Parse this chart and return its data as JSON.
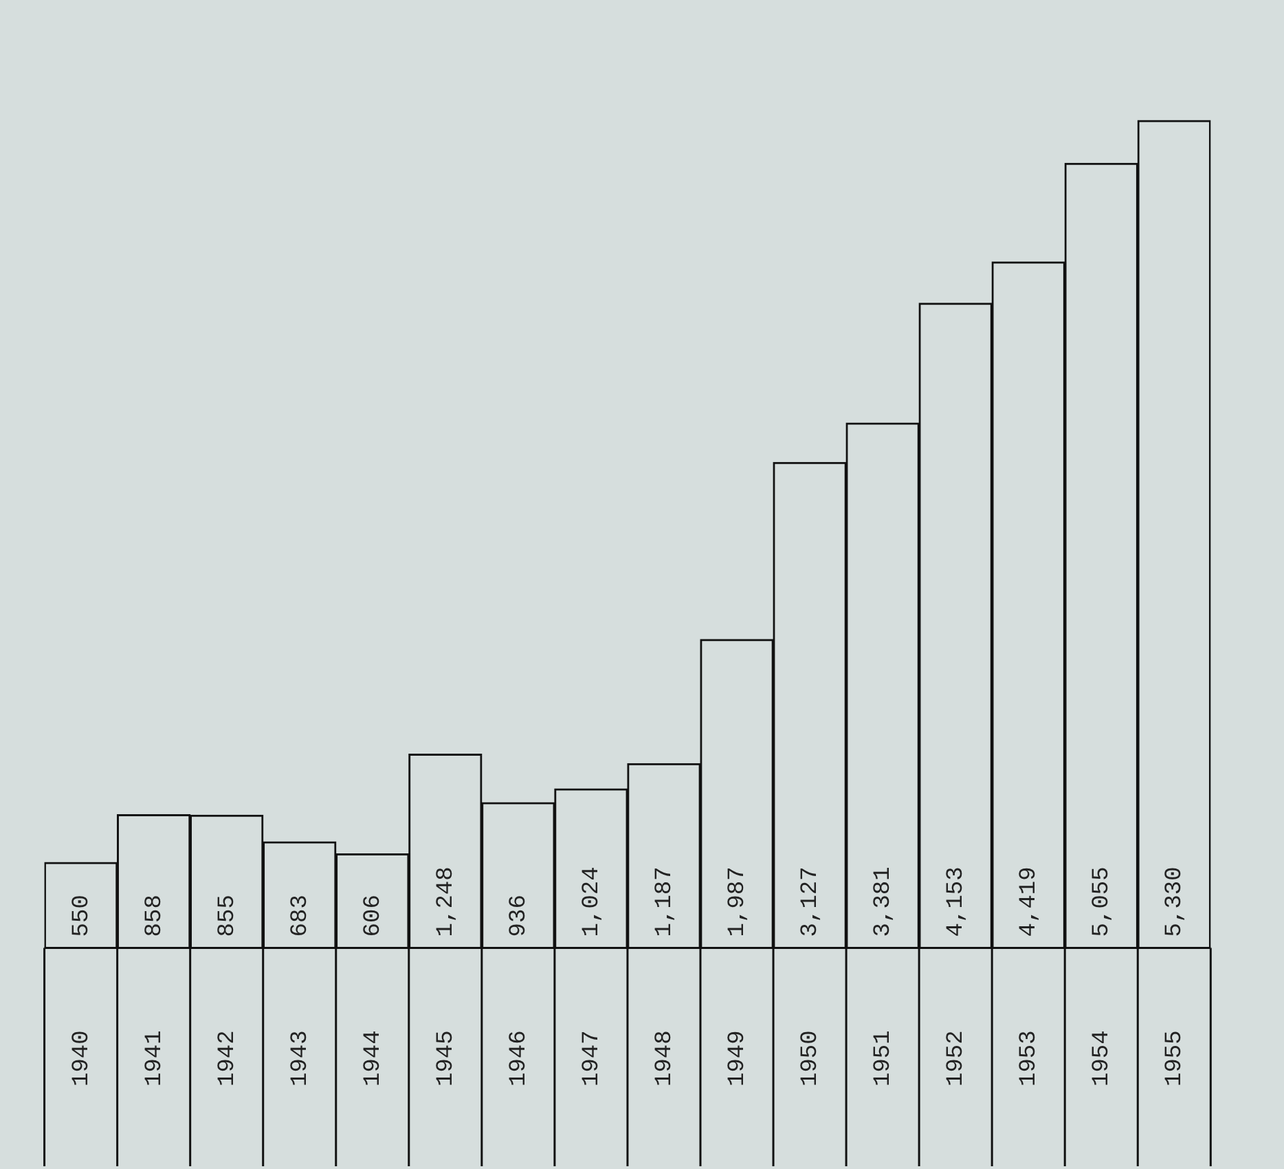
{
  "chart_data": {
    "type": "bar",
    "categories": [
      "1940",
      "1941",
      "1942",
      "1943",
      "1944",
      "1945",
      "1946",
      "1947",
      "1948",
      "1949",
      "1950",
      "1951",
      "1952",
      "1953",
      "1954",
      "1955"
    ],
    "values": [
      550,
      858,
      855,
      683,
      606,
      1248,
      936,
      1024,
      1187,
      1987,
      3127,
      3381,
      4153,
      4419,
      5055,
      5330
    ],
    "value_labels": [
      "550",
      "858",
      "855",
      "683",
      "606",
      "1,248",
      "936",
      "1,024",
      "1,187",
      "1,987",
      "3,127",
      "3,381",
      "4,153",
      "4,419",
      "5,055",
      "5,330"
    ],
    "color": "#d6dedd",
    "grid": false,
    "legend": false
  }
}
